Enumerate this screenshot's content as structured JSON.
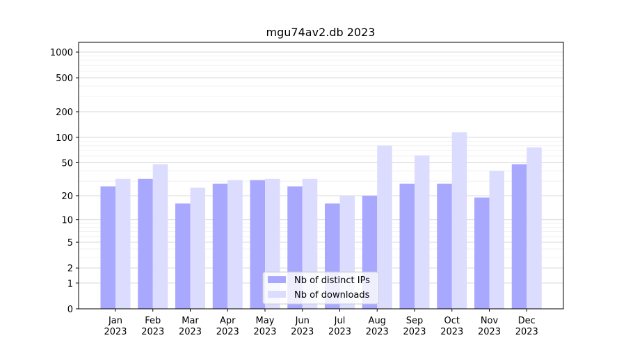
{
  "chart_data": {
    "type": "bar",
    "title": "mgu74av2.db 2023",
    "xlabel": "",
    "ylabel": "",
    "scale": "log1p",
    "categories": [
      "Jan\n2023",
      "Feb\n2023",
      "Mar\n2023",
      "Apr\n2023",
      "May\n2023",
      "Jun\n2023",
      "Jul\n2023",
      "Aug\n2023",
      "Sep\n2023",
      "Oct\n2023",
      "Nov\n2023",
      "Dec\n2023"
    ],
    "series": [
      {
        "name": "Nb of distinct IPs",
        "color": "#a8a8ff",
        "values": [
          26,
          32,
          16,
          28,
          31,
          26,
          16,
          20,
          28,
          28,
          19,
          48
        ]
      },
      {
        "name": "Nb of downloads",
        "color": "#dcdcff",
        "values": [
          32,
          48,
          25,
          31,
          32,
          32,
          20,
          80,
          61,
          115,
          40,
          76
        ]
      }
    ],
    "yticks": [
      0,
      1,
      2,
      5,
      10,
      20,
      50,
      100,
      200,
      500,
      1000
    ],
    "ytick_labels": [
      "0",
      "1",
      "2",
      "5",
      "10",
      "20",
      "50",
      "100",
      "200",
      "500",
      "1000"
    ],
    "ylim": [
      0,
      1300
    ],
    "legend_position": "lower-center",
    "grid": true
  }
}
